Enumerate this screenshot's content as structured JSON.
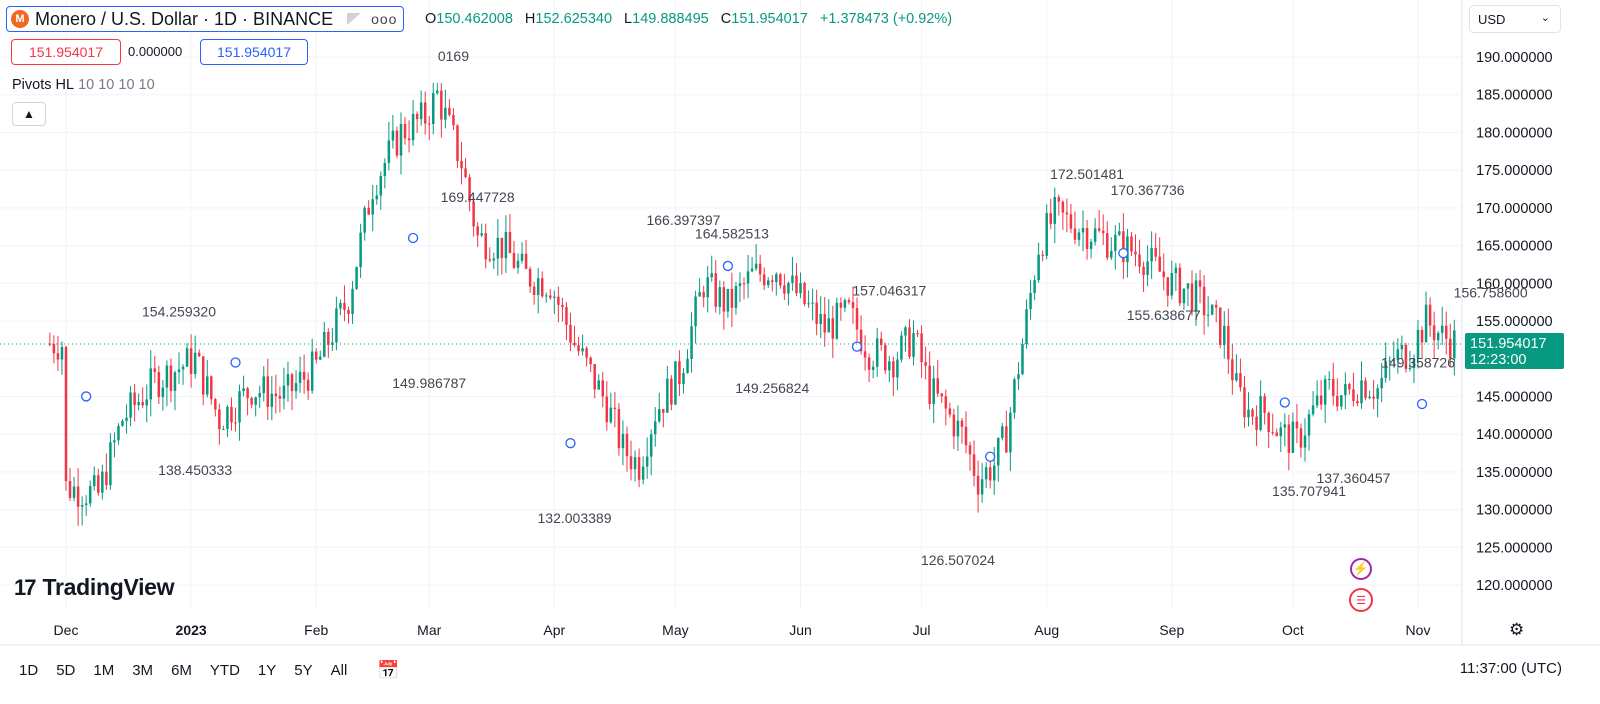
{
  "header": {
    "title": "Monero / U.S. Dollar · 1D · BINANCE",
    "coin_letter": "M",
    "more_label": "ooo",
    "ohlc": [
      {
        "key": "O",
        "value": "150.462008"
      },
      {
        "key": "H",
        "value": "152.625340"
      },
      {
        "key": "L",
        "value": "149.888495"
      },
      {
        "key": "C",
        "value": "151.954017"
      },
      {
        "key": "",
        "value": "+1.378473 (+0.92%)"
      }
    ],
    "price_box_red": "151.954017",
    "zero_value": "0.000000",
    "price_box_blue": "151.954017",
    "indicator_name": "Pivots HL",
    "indicator_params": "10 10 10 10",
    "collapse_icon": "chevron-up-icon"
  },
  "currency": "USD",
  "brand": "TradingView",
  "bottom": {
    "ranges": [
      "1D",
      "5D",
      "1M",
      "3M",
      "6M",
      "YTD",
      "1Y",
      "5Y",
      "All"
    ],
    "time": "11:37:00 (UTC)"
  },
  "last_price": {
    "value": "151.954017",
    "countdown": "12:23:00",
    "color": "#089981"
  },
  "colors": {
    "up": "#089981",
    "down": "#f23645",
    "pivot": "#2962ff"
  },
  "chart_data": {
    "type": "candlestick",
    "ylim": [
      117,
      192
    ],
    "y_ticks": [
      "190.000000",
      "185.000000",
      "180.000000",
      "175.000000",
      "170.000000",
      "165.000000",
      "160.000000",
      "155.000000",
      "150.000000",
      "145.000000",
      "140.000000",
      "135.000000",
      "130.000000",
      "125.000000",
      "120.000000"
    ],
    "x_ticks": [
      "Dec",
      "2023",
      "Feb",
      "Mar",
      "Apr",
      "May",
      "Jun",
      "Jul",
      "Aug",
      "Sep",
      "Oct",
      "Nov"
    ],
    "x_tick_days": [
      0,
      31,
      62,
      90,
      121,
      151,
      182,
      212,
      243,
      274,
      304,
      335
    ],
    "start_date": "2022-11-21",
    "days": 334,
    "anchors": [
      [
        0,
        133
      ],
      [
        8,
        132
      ],
      [
        14,
        142
      ],
      [
        22,
        147
      ],
      [
        32,
        150
      ],
      [
        38,
        142
      ],
      [
        46,
        146
      ],
      [
        54,
        145
      ],
      [
        62,
        149
      ],
      [
        70,
        158
      ],
      [
        76,
        173
      ],
      [
        83,
        180
      ],
      [
        89,
        182
      ],
      [
        92,
        185
      ],
      [
        98,
        176
      ],
      [
        102,
        166
      ],
      [
        108,
        165
      ],
      [
        114,
        161
      ],
      [
        120,
        160
      ],
      [
        126,
        152
      ],
      [
        130,
        148
      ],
      [
        134,
        144
      ],
      [
        138,
        138
      ],
      [
        142,
        136
      ],
      [
        146,
        143
      ],
      [
        152,
        148
      ],
      [
        158,
        160
      ],
      [
        164,
        157
      ],
      [
        170,
        161
      ],
      [
        176,
        162
      ],
      [
        182,
        158
      ],
      [
        188,
        154
      ],
      [
        194,
        156
      ],
      [
        199,
        151
      ],
      [
        205,
        150
      ],
      [
        210,
        153
      ],
      [
        214,
        146
      ],
      [
        218,
        143
      ],
      [
        222,
        140
      ],
      [
        226,
        134
      ],
      [
        230,
        136
      ],
      [
        233,
        140
      ],
      [
        237,
        152
      ],
      [
        241,
        165
      ],
      [
        245,
        169
      ],
      [
        249,
        168
      ],
      [
        253,
        167
      ],
      [
        257,
        166
      ],
      [
        261,
        165
      ],
      [
        266,
        164
      ],
      [
        270,
        162
      ],
      [
        274,
        160
      ],
      [
        278,
        159
      ],
      [
        282,
        157
      ],
      [
        287,
        153
      ],
      [
        290,
        146
      ],
      [
        293,
        143
      ],
      [
        297,
        143
      ],
      [
        301,
        140
      ],
      [
        305,
        139
      ],
      [
        309,
        143
      ],
      [
        313,
        146
      ],
      [
        317,
        145
      ],
      [
        321,
        147
      ],
      [
        325,
        146
      ],
      [
        329,
        150
      ],
      [
        333,
        151
      ],
      [
        337,
        155
      ],
      [
        341,
        153
      ],
      [
        345,
        152
      ],
      [
        349,
        152
      ],
      [
        353,
        151
      ],
      [
        357,
        152
      ]
    ],
    "pivots": [
      {
        "label": "154.259320",
        "day": 28
      },
      {
        "label": "138.450333",
        "day": 32
      },
      {
        "label": "0169",
        "day": 96
      },
      {
        "label": "169.447728",
        "day": 102
      },
      {
        "label": "149.986787",
        "day": 90
      },
      {
        "label": "132.003389",
        "day": 126
      },
      {
        "label": "166.397397",
        "day": 153
      },
      {
        "label": "164.582513",
        "day": 165
      },
      {
        "label": "149.256824",
        "day": 175
      },
      {
        "label": "157.046317",
        "day": 204
      },
      {
        "label": "126.507024",
        "day": 221
      },
      {
        "label": "172.501481",
        "day": 253
      },
      {
        "label": "170.367736",
        "day": 268
      },
      {
        "label": "155.638677",
        "day": 272
      },
      {
        "label": "135.707941",
        "day": 308
      },
      {
        "label": "137.360457",
        "day": 319
      },
      {
        "label": "149.358726",
        "day": 335
      },
      {
        "label": "156.758600",
        "day": 353
      }
    ],
    "pivot_markers": [
      {
        "day": 5,
        "value": 145
      },
      {
        "day": 42,
        "value": 149.5
      },
      {
        "day": 86,
        "value": 166
      },
      {
        "day": 125,
        "value": 138.8
      },
      {
        "day": 164,
        "value": 162.3
      },
      {
        "day": 196,
        "value": 151.6
      },
      {
        "day": 229,
        "value": 137
      },
      {
        "day": 262,
        "value": 164
      },
      {
        "day": 302,
        "value": 144.2
      },
      {
        "day": 336,
        "value": 144
      }
    ],
    "last_price": 151.954017
  }
}
